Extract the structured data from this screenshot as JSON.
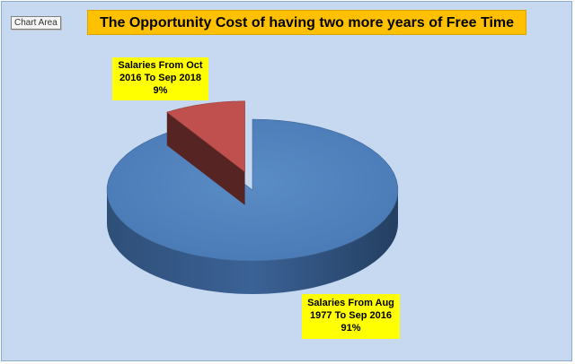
{
  "chart_area_tag": "Chart Area",
  "chart_data": {
    "type": "pie",
    "title": "The Opportunity Cost of having two more years of Free Time",
    "slices": [
      {
        "label_lines": [
          "Salaries From Aug",
          "1977 To  Sep 2016",
          "91%"
        ],
        "value": 91,
        "color": "#4f81bd"
      },
      {
        "label_lines": [
          "Salaries From Oct",
          "2016 To Sep 2018",
          "9%"
        ],
        "value": 9,
        "color": "#c0504d",
        "exploded": true
      }
    ],
    "legend": "none",
    "style": "3d-exploded"
  }
}
